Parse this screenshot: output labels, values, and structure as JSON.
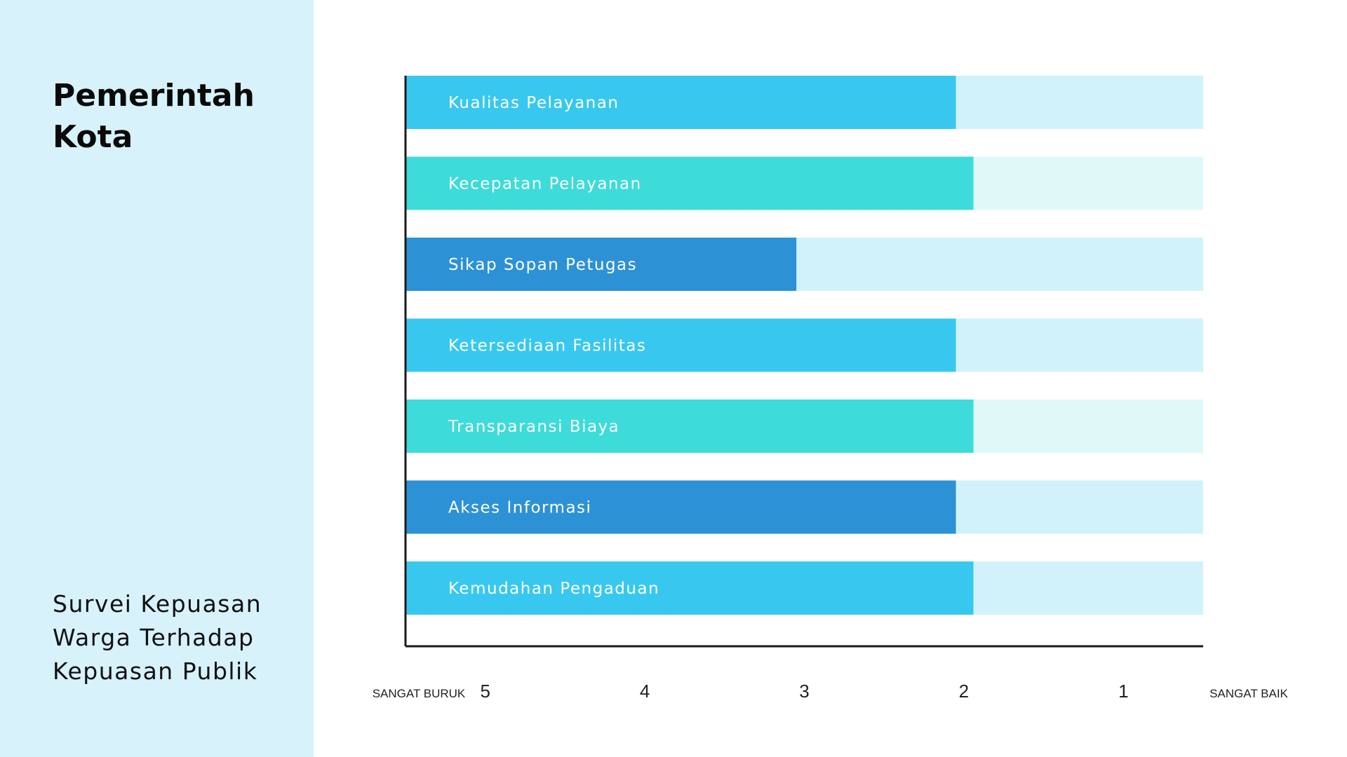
{
  "sidebar": {
    "title": "Pemerintah Kota",
    "subtitle": "Survei Kepuasan Warga Terhadap Kepuasan Publik"
  },
  "chart_data": {
    "type": "bar",
    "orientation": "horizontal",
    "title": "",
    "xlabel": "",
    "ylabel": "",
    "x_ticks": [
      "5",
      "4",
      "3",
      "2",
      "1"
    ],
    "x_range": [
      5.5,
      0.5
    ],
    "x_end_labels": {
      "left": "SANGAT BURUK",
      "right": "SANGAT BAIK"
    },
    "categories": [
      "Kualitas Pelayanan",
      "Kecepatan Pelayanan",
      "Sikap Sopan Petugas",
      "Ketersediaan Fasilitas",
      "Transparansi Biaya",
      "Akses Informasi",
      "Kemudahan Pengaduan"
    ],
    "values": [
      2.05,
      1.94,
      3.05,
      2.05,
      1.94,
      2.05,
      1.94
    ],
    "colors": [
      "#38c8ef",
      "#3ddbd9",
      "#2d91d5",
      "#38c8ef",
      "#3ddbd9",
      "#2d91d5",
      "#38c8ef"
    ],
    "track_colors": [
      "#d1f2fb",
      "#dff9f8",
      "#d1f2fb",
      "#d1f2fb",
      "#dff9f8",
      "#d1f2fb",
      "#d1f2fb"
    ],
    "grid": false,
    "legend": "none"
  }
}
